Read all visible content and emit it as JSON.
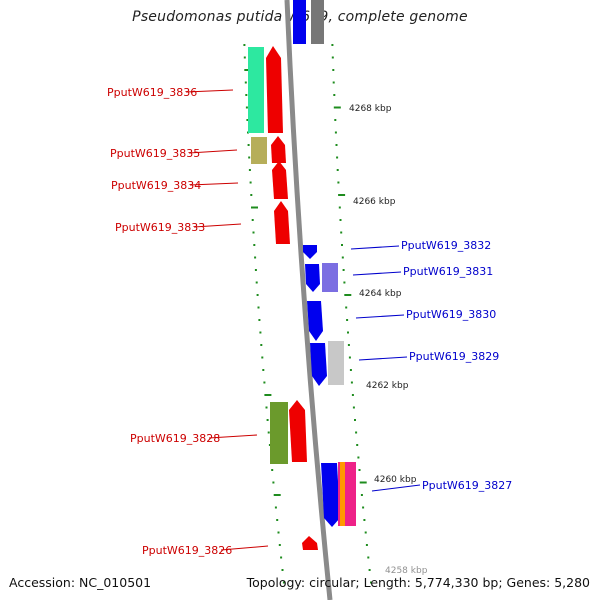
{
  "title": "Pseudomonas putida W619, complete genome",
  "accession": "Accession: NC_010501",
  "footer": "Topology: circular; Length: 5,774,330 bp; Genes: 5,280",
  "colors": {
    "forward_label": "#cc0000",
    "reverse_label": "#0000cc",
    "tick": "#1e8c1e",
    "backbone": "#888888"
  },
  "tick_labels": [
    "4268 kbp",
    "4266 kbp",
    "4264 kbp",
    "4262 kbp",
    "4260 kbp",
    "4258 kbp"
  ],
  "forward_genes": [
    "PputW619_3836",
    "PputW619_3835",
    "PputW619_3834",
    "PputW619_3833",
    "PputW619_3828",
    "PputW619_3826"
  ],
  "reverse_genes": [
    "PputW619_3832",
    "PputW619_3831",
    "PputW619_3830",
    "PputW619_3829",
    "PputW619_3827"
  ]
}
